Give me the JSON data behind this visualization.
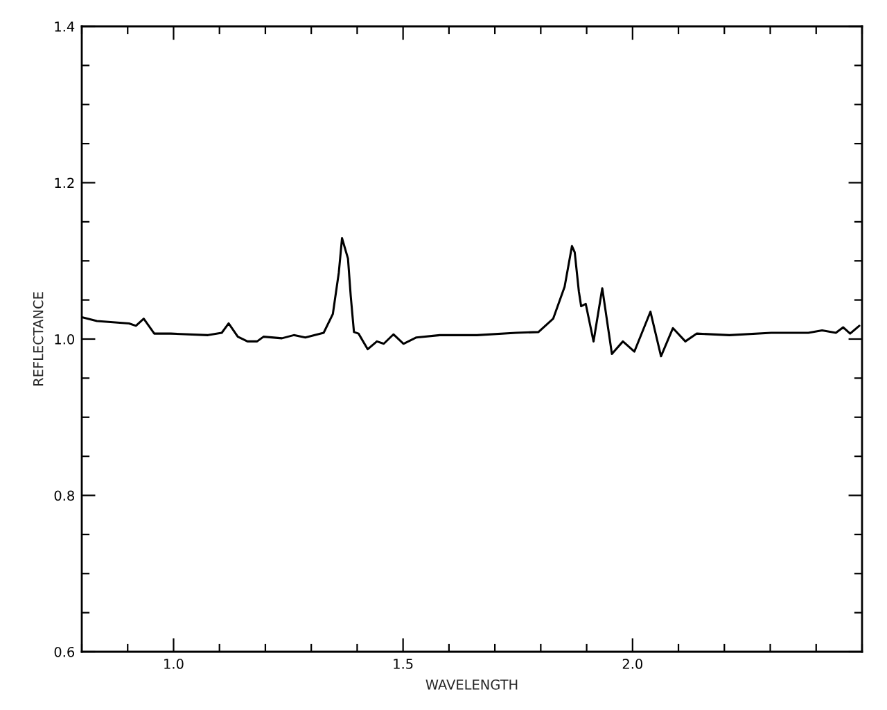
{
  "chart_data": {
    "type": "line",
    "xlabel": "WAVELENGTH",
    "ylabel": "REFLECTANCE",
    "xlim": [
      0.8,
      2.5
    ],
    "xticks": [
      {
        "value": 1.0,
        "label": "1.0"
      },
      {
        "value": 1.5,
        "label": "1.5"
      },
      {
        "value": 2.0,
        "label": "2.0"
      }
    ],
    "ylim": [
      0.6,
      1.4
    ],
    "yticks": [
      {
        "value": 0.6,
        "label": "0.6"
      },
      {
        "value": 0.8,
        "label": "0.8"
      },
      {
        "value": 1.0,
        "label": "1.0"
      },
      {
        "value": 1.2,
        "label": "1.2"
      },
      {
        "value": 1.4,
        "label": "1.4"
      }
    ],
    "grid": false,
    "marker": "none",
    "line_style": "solid",
    "series": [
      {
        "color": "#000000",
        "x": [
          0.8,
          0.833,
          0.903,
          0.918,
          0.935,
          0.958,
          0.994,
          1.075,
          1.105,
          1.12,
          1.14,
          1.161,
          1.182,
          1.196,
          1.236,
          1.262,
          1.287,
          1.327,
          1.347,
          1.36,
          1.367,
          1.38,
          1.386,
          1.393,
          1.403,
          1.423,
          1.443,
          1.458,
          1.479,
          1.501,
          1.529,
          1.58,
          1.63,
          1.661,
          1.746,
          1.795,
          1.827,
          1.852,
          1.868,
          1.874,
          1.883,
          1.888,
          1.898,
          1.915,
          1.934,
          1.955,
          1.979,
          2.004,
          2.039,
          2.062,
          2.088,
          2.115,
          2.14,
          2.211,
          2.302,
          2.383,
          2.413,
          2.443,
          2.459,
          2.474,
          2.494
        ],
        "values": [
          1.028,
          1.023,
          1.02,
          1.017,
          1.026,
          1.007,
          1.007,
          1.005,
          1.008,
          1.02,
          1.003,
          0.997,
          0.997,
          1.003,
          1.001,
          1.005,
          1.002,
          1.008,
          1.032,
          1.085,
          1.129,
          1.103,
          1.055,
          1.009,
          1.007,
          0.987,
          0.997,
          0.994,
          1.006,
          0.994,
          1.002,
          1.005,
          1.005,
          1.005,
          1.008,
          1.009,
          1.026,
          1.067,
          1.119,
          1.111,
          1.061,
          1.042,
          1.045,
          0.997,
          1.065,
          0.981,
          0.997,
          0.984,
          1.035,
          0.978,
          1.014,
          0.997,
          1.007,
          1.005,
          1.008,
          1.008,
          1.011,
          1.008,
          1.015,
          1.007,
          1.017
        ]
      }
    ]
  }
}
